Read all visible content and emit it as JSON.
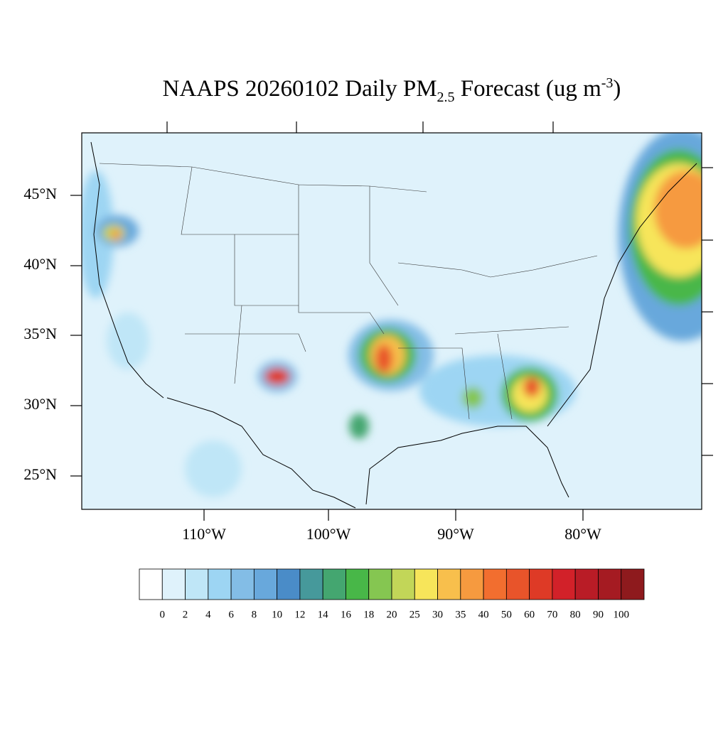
{
  "title": {
    "text": "NAAPS 20260102 Daily PM",
    "subscript": "2.5",
    "middle": " Forecast (ug m",
    "superscript": "-3",
    "end": ")"
  },
  "lat_labels": [
    "45°N",
    "40°N",
    "35°N",
    "30°N",
    "25°N"
  ],
  "lon_labels": [
    "110°W",
    "100°W",
    "90°W",
    "80°W"
  ],
  "colorbar": {
    "levels": [
      0,
      2,
      4,
      6,
      8,
      10,
      12,
      14,
      16,
      18,
      20,
      25,
      30,
      35,
      40,
      50,
      60,
      70,
      80,
      90,
      100
    ],
    "colors": [
      "#ffffff",
      "#dff2fb",
      "#bfe6f7",
      "#9dd5f3",
      "#83bde6",
      "#68a8dc",
      "#4a8cc8",
      "#46999b",
      "#44a670",
      "#48b748",
      "#85c651",
      "#c2d658",
      "#f7e55a",
      "#f8bf4c",
      "#f69a3f",
      "#f26e2f",
      "#e8542a",
      "#de3a26",
      "#d22129",
      "#b91c26",
      "#a51b22",
      "#8e1a1d"
    ]
  }
}
